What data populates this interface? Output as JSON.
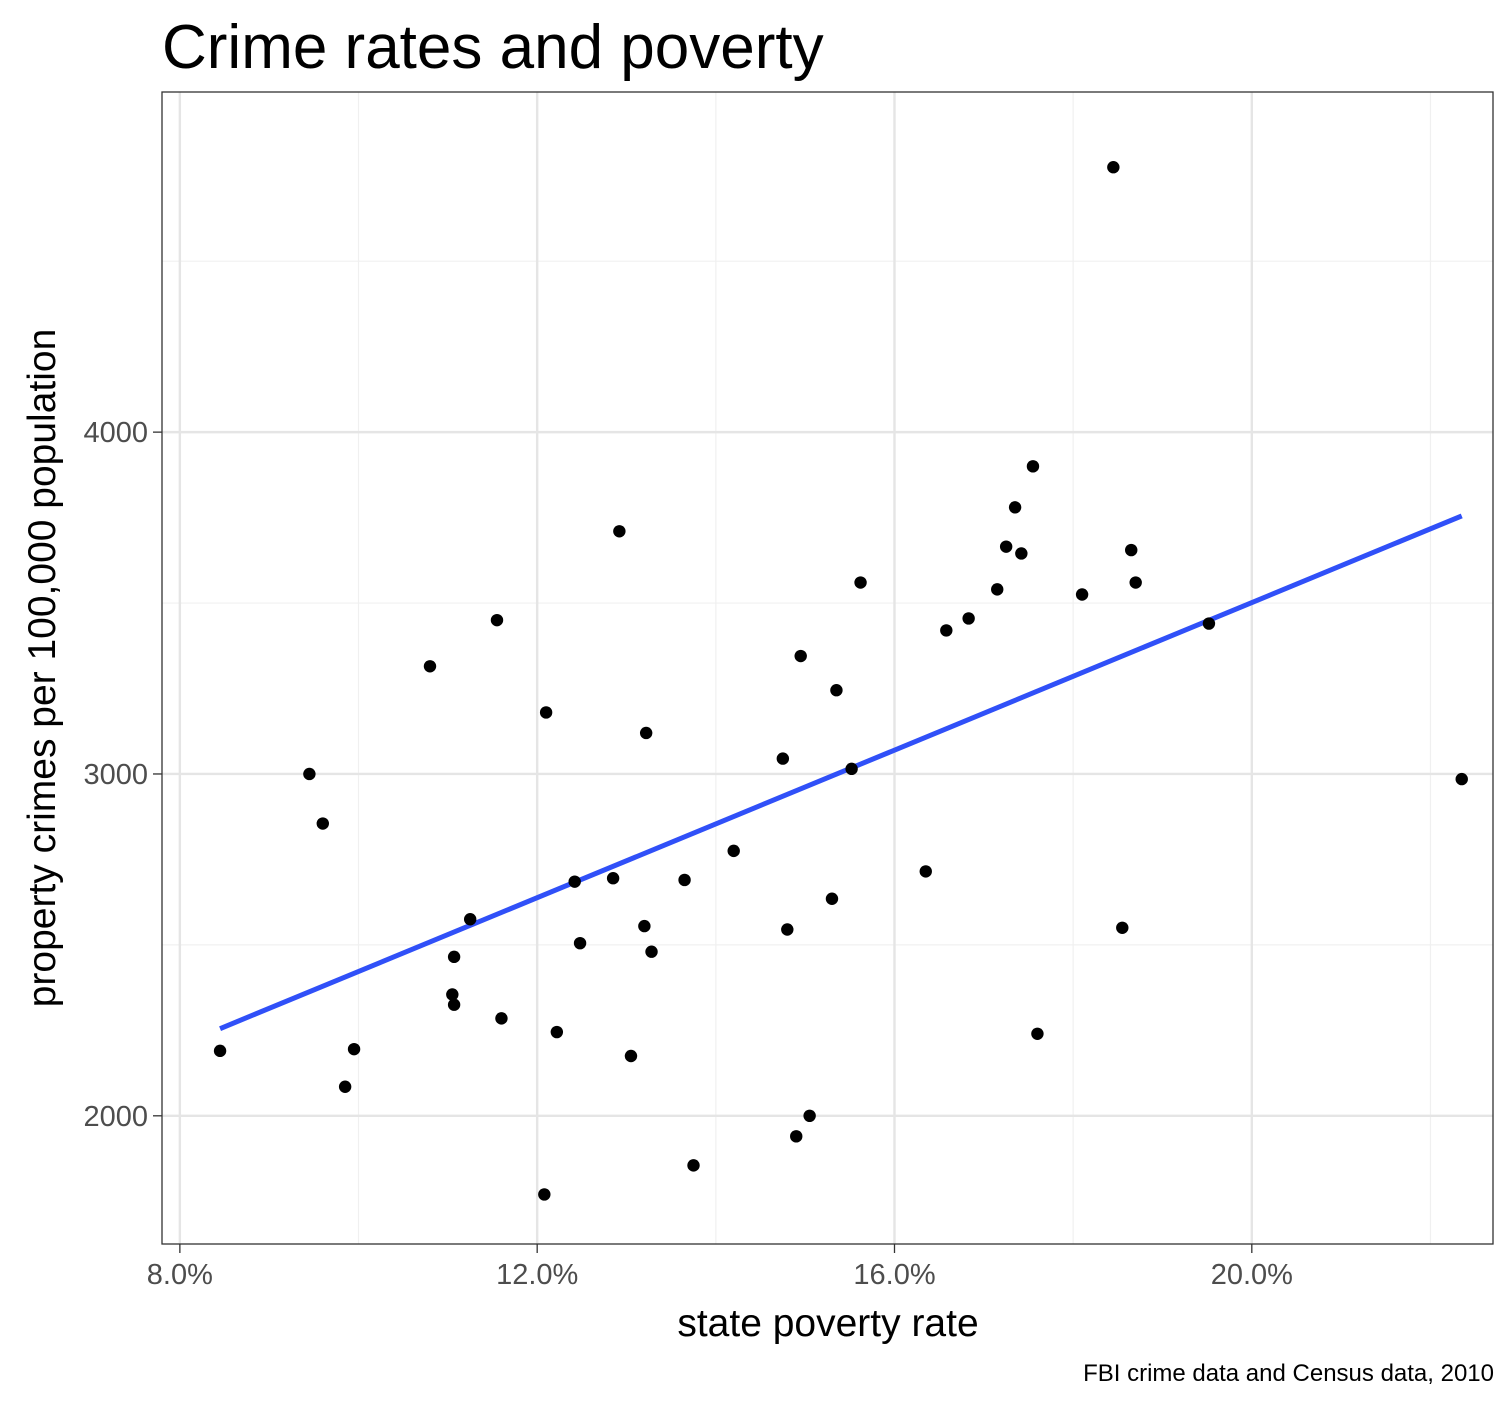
{
  "chart_data": {
    "type": "scatter",
    "title": "Crime rates and poverty",
    "xlabel": "state poverty rate",
    "ylabel": "property crimes per 100,000 population",
    "caption": "FBI crime data and Census data, 2010",
    "x_unit": "percent",
    "xlim": [
      7.8,
      22.7
    ],
    "ylim": [
      1625,
      4995
    ],
    "x_ticks": [
      8,
      12,
      16,
      20
    ],
    "x_tick_labels": [
      "8.0%",
      "12.0%",
      "16.0%",
      "20.0%"
    ],
    "y_ticks": [
      2000,
      3000,
      4000
    ],
    "y_tick_labels": [
      "2000",
      "3000",
      "4000"
    ],
    "grid": true,
    "legend": "none",
    "point_color": "#000000",
    "fit_line_color": "#3050f8",
    "fit_line": {
      "x": [
        8.45,
        22.35
      ],
      "y": [
        2255,
        3755
      ]
    },
    "points": [
      {
        "x": 8.45,
        "y": 2190
      },
      {
        "x": 9.85,
        "y": 2085
      },
      {
        "x": 9.95,
        "y": 2195
      },
      {
        "x": 9.45,
        "y": 3000
      },
      {
        "x": 9.6,
        "y": 2855
      },
      {
        "x": 10.8,
        "y": 3315
      },
      {
        "x": 11.05,
        "y": 2355
      },
      {
        "x": 11.07,
        "y": 2325
      },
      {
        "x": 11.07,
        "y": 2465
      },
      {
        "x": 11.25,
        "y": 2575
      },
      {
        "x": 11.55,
        "y": 3450
      },
      {
        "x": 11.6,
        "y": 2285
      },
      {
        "x": 12.08,
        "y": 1770
      },
      {
        "x": 12.1,
        "y": 3180
      },
      {
        "x": 12.22,
        "y": 2245
      },
      {
        "x": 12.42,
        "y": 2685
      },
      {
        "x": 12.48,
        "y": 2505
      },
      {
        "x": 12.85,
        "y": 2695
      },
      {
        "x": 12.92,
        "y": 3710
      },
      {
        "x": 13.05,
        "y": 2175
      },
      {
        "x": 13.2,
        "y": 2555
      },
      {
        "x": 13.22,
        "y": 3120
      },
      {
        "x": 13.28,
        "y": 2480
      },
      {
        "x": 13.65,
        "y": 2690
      },
      {
        "x": 13.75,
        "y": 1855
      },
      {
        "x": 14.2,
        "y": 2775
      },
      {
        "x": 14.75,
        "y": 3045
      },
      {
        "x": 14.8,
        "y": 2545
      },
      {
        "x": 14.9,
        "y": 1940
      },
      {
        "x": 14.95,
        "y": 3345
      },
      {
        "x": 15.05,
        "y": 2000
      },
      {
        "x": 15.3,
        "y": 2635
      },
      {
        "x": 15.35,
        "y": 3245
      },
      {
        "x": 15.52,
        "y": 3015
      },
      {
        "x": 15.62,
        "y": 3560
      },
      {
        "x": 16.35,
        "y": 2715
      },
      {
        "x": 16.58,
        "y": 3420
      },
      {
        "x": 16.83,
        "y": 3455
      },
      {
        "x": 17.15,
        "y": 3540
      },
      {
        "x": 17.25,
        "y": 3665
      },
      {
        "x": 17.35,
        "y": 3780
      },
      {
        "x": 17.42,
        "y": 3645
      },
      {
        "x": 17.55,
        "y": 3900
      },
      {
        "x": 17.6,
        "y": 2240
      },
      {
        "x": 18.1,
        "y": 3525
      },
      {
        "x": 18.45,
        "y": 4775
      },
      {
        "x": 18.55,
        "y": 2550
      },
      {
        "x": 18.65,
        "y": 3655
      },
      {
        "x": 18.7,
        "y": 3560
      },
      {
        "x": 19.52,
        "y": 3440
      },
      {
        "x": 22.35,
        "y": 2985
      }
    ]
  }
}
